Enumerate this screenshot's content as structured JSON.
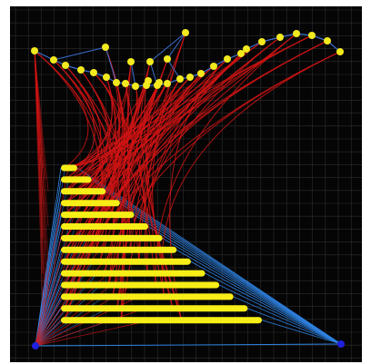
{
  "colors": {
    "background": "#050505",
    "grid": "#2e2e2e",
    "top_edges": "#3b6fd1",
    "cross_links": "#d11414",
    "fan_links": "#2f83e3",
    "nodes": "#f2ea1e",
    "bars": "#f7ee17",
    "anchors": "#2020e0"
  },
  "grid": true,
  "anchors": [
    "left-anchor",
    "right-anchor"
  ],
  "bars": {
    "count": 14
  },
  "top_nodes": {
    "count": 34
  }
}
